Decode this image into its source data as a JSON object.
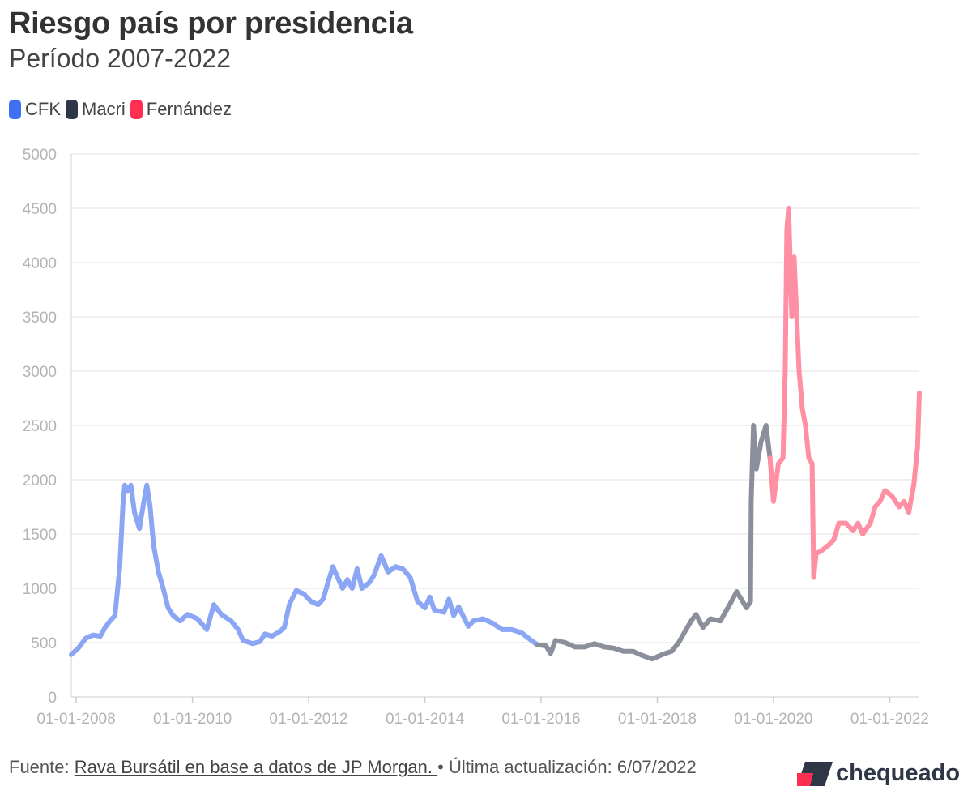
{
  "header": {
    "title": "Riesgo país por presidencia",
    "subtitle": "Período 2007-2022"
  },
  "legend": [
    {
      "label": "CFK",
      "color": "#3f6ff5"
    },
    {
      "label": "Macri",
      "color": "#2f3646"
    },
    {
      "label": "Fernández",
      "color": "#ff2f52"
    }
  ],
  "footer": {
    "source_prefix": "Fuente: ",
    "source_link": "Rava Bursátil en base a datos de JP Morgan. ",
    "separator": "•",
    "updated": " Última actualización: 6/07/2022"
  },
  "logo": {
    "text": "chequeado",
    "accent_color": "#ff2f52",
    "dark_color": "#2f3646"
  },
  "chart_data": {
    "type": "line",
    "title": "Riesgo país por presidencia",
    "subtitle": "Período 2007-2022",
    "xlabel": "",
    "ylabel": "",
    "ylim": [
      0,
      5000
    ],
    "xlim": [
      "2007-12-01",
      "2022-07-06"
    ],
    "yticks": [
      "0",
      "500",
      "1000",
      "1500",
      "2000",
      "2500",
      "3000",
      "3500",
      "4000",
      "4500",
      "5000"
    ],
    "xticks": [
      {
        "date": "2008-01-01",
        "label": "01-01-2008"
      },
      {
        "date": "2010-01-01",
        "label": "01-01-2010"
      },
      {
        "date": "2012-01-01",
        "label": "01-01-2012"
      },
      {
        "date": "2014-01-01",
        "label": "01-01-2014"
      },
      {
        "date": "2016-01-01",
        "label": "01-01-2016"
      },
      {
        "date": "2018-01-01",
        "label": "01-01-2018"
      },
      {
        "date": "2020-01-01",
        "label": "01-01-2020"
      },
      {
        "date": "2022-01-01",
        "label": "01-01-2022"
      }
    ],
    "grid": true,
    "series": [
      {
        "name": "CFK",
        "color": "#8aa6f5",
        "points": [
          [
            "2007-12-01",
            390
          ],
          [
            "2008-01-15",
            450
          ],
          [
            "2008-03-01",
            540
          ],
          [
            "2008-04-15",
            570
          ],
          [
            "2008-06-01",
            560
          ],
          [
            "2008-07-01",
            640
          ],
          [
            "2008-08-01",
            700
          ],
          [
            "2008-09-01",
            750
          ],
          [
            "2008-10-01",
            1200
          ],
          [
            "2008-10-20",
            1750
          ],
          [
            "2008-11-01",
            1950
          ],
          [
            "2008-11-20",
            1900
          ],
          [
            "2008-12-10",
            1950
          ],
          [
            "2009-01-01",
            1700
          ],
          [
            "2009-02-01",
            1550
          ],
          [
            "2009-03-01",
            1800
          ],
          [
            "2009-03-20",
            1950
          ],
          [
            "2009-04-10",
            1750
          ],
          [
            "2009-05-01",
            1400
          ],
          [
            "2009-06-01",
            1150
          ],
          [
            "2009-07-01",
            1000
          ],
          [
            "2009-08-01",
            820
          ],
          [
            "2009-09-01",
            750
          ],
          [
            "2009-10-15",
            700
          ],
          [
            "2009-12-01",
            760
          ],
          [
            "2010-02-01",
            720
          ],
          [
            "2010-04-01",
            620
          ],
          [
            "2010-05-15",
            850
          ],
          [
            "2010-07-01",
            760
          ],
          [
            "2010-09-01",
            700
          ],
          [
            "2010-10-15",
            620
          ],
          [
            "2010-11-15",
            520
          ],
          [
            "2011-01-15",
            490
          ],
          [
            "2011-03-01",
            510
          ],
          [
            "2011-04-01",
            580
          ],
          [
            "2011-05-15",
            560
          ],
          [
            "2011-07-01",
            600
          ],
          [
            "2011-08-01",
            640
          ],
          [
            "2011-09-01",
            850
          ],
          [
            "2011-10-15",
            980
          ],
          [
            "2011-12-01",
            950
          ],
          [
            "2012-01-15",
            880
          ],
          [
            "2012-03-01",
            850
          ],
          [
            "2012-04-01",
            900
          ],
          [
            "2012-05-01",
            1050
          ],
          [
            "2012-06-01",
            1200
          ],
          [
            "2012-07-01",
            1100
          ],
          [
            "2012-08-01",
            1000
          ],
          [
            "2012-09-01",
            1080
          ],
          [
            "2012-10-01",
            1000
          ],
          [
            "2012-11-01",
            1180
          ],
          [
            "2012-12-01",
            1000
          ],
          [
            "2013-01-15",
            1050
          ],
          [
            "2013-02-15",
            1120
          ],
          [
            "2013-04-01",
            1300
          ],
          [
            "2013-05-15",
            1150
          ],
          [
            "2013-07-01",
            1200
          ],
          [
            "2013-08-15",
            1180
          ],
          [
            "2013-10-01",
            1100
          ],
          [
            "2013-11-15",
            880
          ],
          [
            "2014-01-01",
            820
          ],
          [
            "2014-02-01",
            920
          ],
          [
            "2014-03-01",
            800
          ],
          [
            "2014-05-01",
            780
          ],
          [
            "2014-06-01",
            900
          ],
          [
            "2014-07-01",
            750
          ],
          [
            "2014-08-01",
            830
          ],
          [
            "2014-10-01",
            650
          ],
          [
            "2014-11-01",
            700
          ],
          [
            "2015-01-01",
            720
          ],
          [
            "2015-03-01",
            680
          ],
          [
            "2015-05-01",
            620
          ],
          [
            "2015-07-01",
            620
          ],
          [
            "2015-09-01",
            590
          ],
          [
            "2015-11-01",
            520
          ],
          [
            "2015-12-10",
            480
          ]
        ]
      },
      {
        "name": "Macri",
        "color": "#8a8f9b",
        "points": [
          [
            "2015-12-10",
            480
          ],
          [
            "2016-02-01",
            470
          ],
          [
            "2016-03-01",
            400
          ],
          [
            "2016-04-01",
            520
          ],
          [
            "2016-06-01",
            500
          ],
          [
            "2016-08-01",
            460
          ],
          [
            "2016-10-01",
            460
          ],
          [
            "2016-12-01",
            490
          ],
          [
            "2017-02-01",
            460
          ],
          [
            "2017-04-01",
            450
          ],
          [
            "2017-06-01",
            420
          ],
          [
            "2017-08-01",
            420
          ],
          [
            "2017-10-01",
            380
          ],
          [
            "2017-12-01",
            350
          ],
          [
            "2018-02-01",
            390
          ],
          [
            "2018-04-01",
            420
          ],
          [
            "2018-05-15",
            500
          ],
          [
            "2018-06-15",
            580
          ],
          [
            "2018-08-01",
            700
          ],
          [
            "2018-09-01",
            760
          ],
          [
            "2018-10-15",
            640
          ],
          [
            "2018-12-01",
            720
          ],
          [
            "2019-02-01",
            700
          ],
          [
            "2019-04-01",
            850
          ],
          [
            "2019-05-15",
            970
          ],
          [
            "2019-07-15",
            820
          ],
          [
            "2019-08-10",
            880
          ],
          [
            "2019-08-14",
            1800
          ],
          [
            "2019-08-28",
            2500
          ],
          [
            "2019-09-15",
            2100
          ],
          [
            "2019-10-15",
            2350
          ],
          [
            "2019-11-15",
            2500
          ],
          [
            "2019-12-10",
            2200
          ]
        ]
      },
      {
        "name": "Fernández",
        "color": "#ff8fa3",
        "points": [
          [
            "2019-12-10",
            2200
          ],
          [
            "2020-01-01",
            1800
          ],
          [
            "2020-02-01",
            2150
          ],
          [
            "2020-03-01",
            2200
          ],
          [
            "2020-03-15",
            3000
          ],
          [
            "2020-03-25",
            4300
          ],
          [
            "2020-04-05",
            4500
          ],
          [
            "2020-04-25",
            3500
          ],
          [
            "2020-05-10",
            4050
          ],
          [
            "2020-06-10",
            3000
          ],
          [
            "2020-07-01",
            2650
          ],
          [
            "2020-07-20",
            2500
          ],
          [
            "2020-08-10",
            2200
          ],
          [
            "2020-08-31",
            2150
          ],
          [
            "2020-09-10",
            1100
          ],
          [
            "2020-09-25",
            1320
          ],
          [
            "2020-11-01",
            1350
          ],
          [
            "2020-12-15",
            1400
          ],
          [
            "2021-01-15",
            1450
          ],
          [
            "2021-02-15",
            1600
          ],
          [
            "2021-04-01",
            1600
          ],
          [
            "2021-05-15",
            1530
          ],
          [
            "2021-06-15",
            1600
          ],
          [
            "2021-07-15",
            1500
          ],
          [
            "2021-09-01",
            1600
          ],
          [
            "2021-10-01",
            1750
          ],
          [
            "2021-11-01",
            1800
          ],
          [
            "2021-12-01",
            1900
          ],
          [
            "2022-01-15",
            1850
          ],
          [
            "2022-03-01",
            1750
          ],
          [
            "2022-04-01",
            1800
          ],
          [
            "2022-05-01",
            1700
          ],
          [
            "2022-06-01",
            1950
          ],
          [
            "2022-06-25",
            2300
          ],
          [
            "2022-07-06",
            2800
          ]
        ]
      }
    ]
  }
}
